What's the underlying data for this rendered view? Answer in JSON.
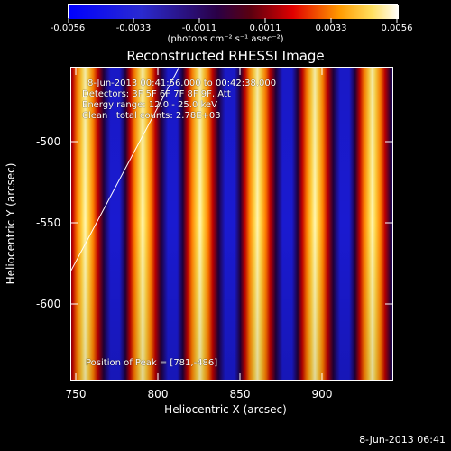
{
  "colorbar": {
    "labels": [
      "-0.0056",
      "-0.0033",
      "-0.0011",
      "0.0011",
      "0.0033",
      "0.0056"
    ],
    "units": "(photons cm⁻² s⁻¹ asec⁻²)"
  },
  "title": "Reconstructed RHESSI Image",
  "overlay": {
    "line1": "8-Jun-2013 00:41:56.000 to 00:42:38.000",
    "line2": "Detectors: 3F 5F 6F 7F 8F 9F, Att",
    "line3": "Energy range: 12.0 - 25.0 keV",
    "line4": "Clean   total counts: 2.78E+03",
    "peak": "Position of Peak = [781,-486]"
  },
  "axes": {
    "xlabel": "Heliocentric X (arcsec)",
    "ylabel": "Heliocentric Y (arcsec)",
    "xticks": [
      "750",
      "800",
      "850",
      "900"
    ],
    "yticks": [
      "-500",
      "-550",
      "-600"
    ]
  },
  "footer": {
    "date": "8-Jun-2013 06:41"
  },
  "colors": {
    "blue": "#1010d0",
    "dark": "#20003a",
    "red": "#e00000",
    "orange": "#ff9a00",
    "yellow": "#ffe060",
    "white": "#fffad0"
  }
}
